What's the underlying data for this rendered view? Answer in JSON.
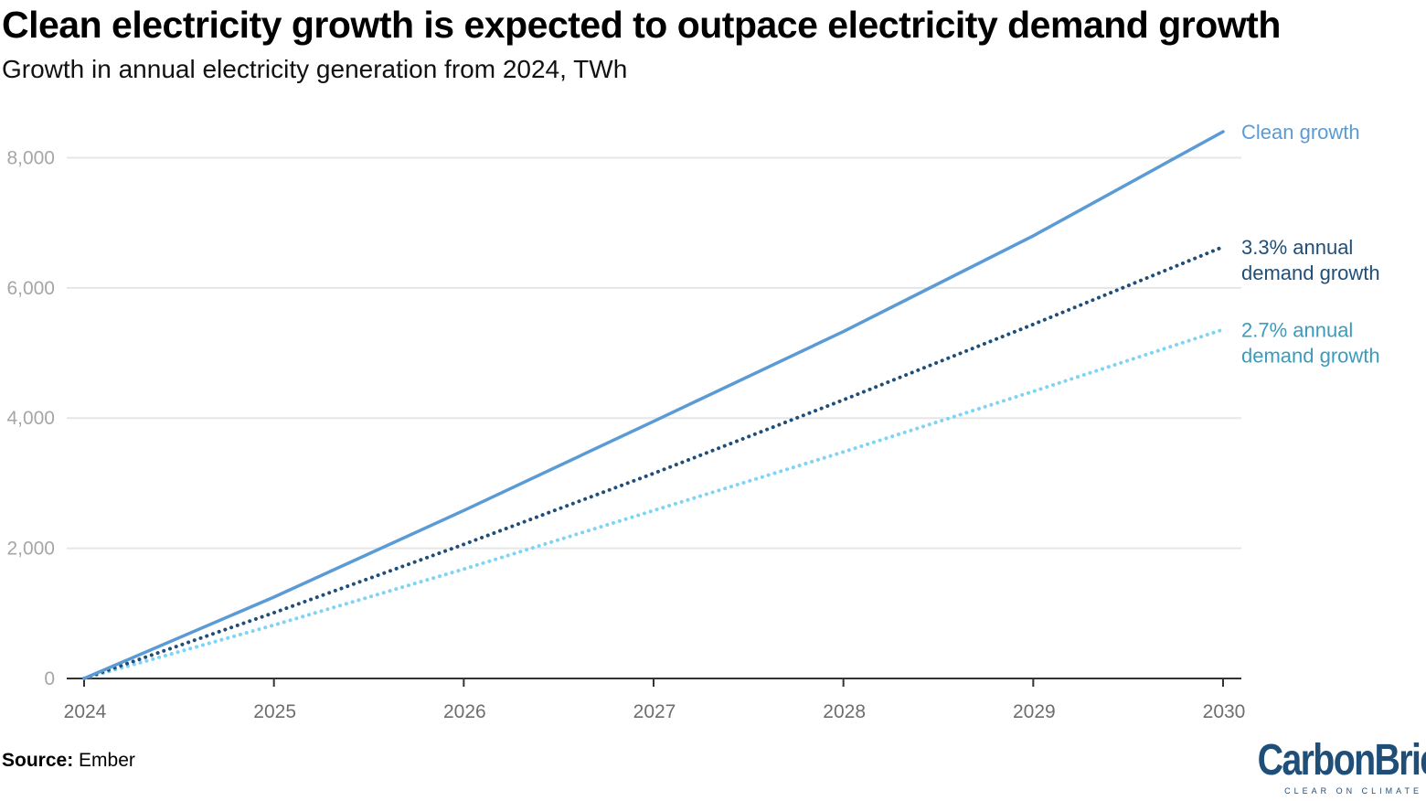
{
  "title": "Clean electricity growth is expected to outpace electricity demand growth",
  "subtitle": "Growth in annual electricity generation from 2024, TWh",
  "source_label": "Source:",
  "source_text": "Ember",
  "logo": {
    "text": "CarbonBrief",
    "tagline": "CLEAR ON CLIMATE"
  },
  "colors": {
    "clean": "#5b9bd5",
    "demand_33": "#1f4e79",
    "demand_27": "#7fd4f5",
    "grid": "#e6e6e6",
    "axis": "#333333"
  },
  "chart_data": {
    "type": "line",
    "title": "Clean electricity growth is expected to outpace electricity demand growth",
    "subtitle": "Growth in annual electricity generation from 2024, TWh",
    "xlabel": "",
    "ylabel": "",
    "x": [
      2024,
      2025,
      2026,
      2027,
      2028,
      2029,
      2030
    ],
    "xticks": [
      "2024",
      "2025",
      "2026",
      "2027",
      "2028",
      "2029",
      "2030"
    ],
    "ylim": [
      0,
      8400
    ],
    "yticks": [
      0,
      2000,
      4000,
      6000,
      8000
    ],
    "ytick_labels": [
      "0",
      "2,000",
      "4,000",
      "6,000",
      "8,000"
    ],
    "grid": true,
    "series": [
      {
        "name": "Clean growth",
        "label_lines": [
          "Clean growth"
        ],
        "style": "solid",
        "color_key": "clean",
        "values": [
          0,
          1250,
          2580,
          3950,
          5330,
          6800,
          8400
        ]
      },
      {
        "name": "3.3% annual demand growth",
        "label_lines": [
          "3.3% annual",
          "demand growth"
        ],
        "style": "dotted",
        "color_key": "demand_33",
        "values": [
          0,
          1010,
          2060,
          3150,
          4280,
          5440,
          6630
        ]
      },
      {
        "name": "2.7% annual demand growth",
        "label_lines": [
          "2.7% annual",
          "demand growth"
        ],
        "style": "dotted",
        "color_key": "demand_27",
        "values": [
          0,
          820,
          1680,
          2580,
          3480,
          4410,
          5360
        ]
      }
    ]
  }
}
